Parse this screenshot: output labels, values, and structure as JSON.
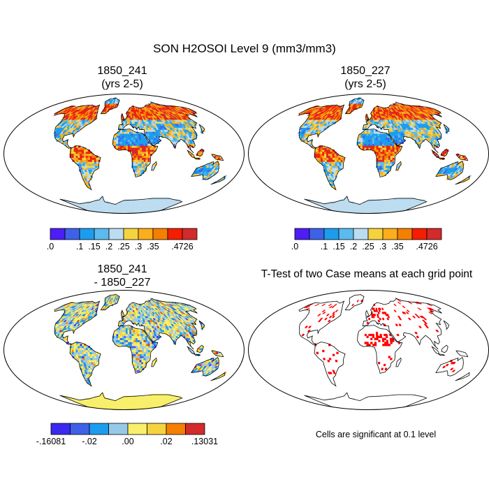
{
  "figure": {
    "title": "SON H2OSOI Level 9 (mm3/mm3)"
  },
  "panels": [
    {
      "id": "p1",
      "title_lines": [
        "1850_241",
        "(yrs 2-5)"
      ],
      "type": "map",
      "palette": [
        "#4d1df5",
        "#3d62e8",
        "#1d9ced",
        "#5cbaee",
        "#bcdcf0",
        "#f5d33f",
        "#fbae1b",
        "#f57f00",
        "#f51e00",
        "#d32a2b"
      ],
      "colorbar": {
        "colors": [
          "#4d1df5",
          "#3d62e8",
          "#1d9ced",
          "#5cbaee",
          "#bcdcf0",
          "#f5d33f",
          "#fbae1b",
          "#f57f00",
          "#f51e00",
          "#d32a2b"
        ],
        "tick_labels": [
          ".0",
          ".1",
          ".15",
          ".2",
          ".25",
          ".3",
          ".35",
          ".4726"
        ],
        "tick_boundaries": [
          0,
          2,
          3,
          4,
          5,
          6,
          7,
          9
        ]
      }
    },
    {
      "id": "p2",
      "title_lines": [
        "1850_227",
        "(yrs 2-5)"
      ],
      "type": "map",
      "palette": [
        "#4d1df5",
        "#3d62e8",
        "#1d9ced",
        "#5cbaee",
        "#bcdcf0",
        "#f5d33f",
        "#fbae1b",
        "#f57f00",
        "#f51e00",
        "#d32a2b"
      ],
      "colorbar": {
        "colors": [
          "#4d1df5",
          "#3d62e8",
          "#1d9ced",
          "#5cbaee",
          "#bcdcf0",
          "#f5d33f",
          "#fbae1b",
          "#f57f00",
          "#f51e00",
          "#d32a2b"
        ],
        "tick_labels": [
          ".0",
          ".1",
          ".15",
          ".2",
          ".25",
          ".3",
          ".35",
          ".4726"
        ],
        "tick_boundaries": [
          0,
          2,
          3,
          4,
          5,
          6,
          7,
          9
        ]
      }
    },
    {
      "id": "p3",
      "title_lines": [
        "1850_241",
        "- 1850_227"
      ],
      "type": "difference-map",
      "palette": [
        "#3a2af0",
        "#3d62e8",
        "#1d9ced",
        "#96c8e8",
        "#f8ef6a",
        "#f5d33f",
        "#f57f00",
        "#d32a2b"
      ],
      "colorbar": {
        "colors": [
          "#3a2af0",
          "#3d62e8",
          "#1d9ced",
          "#96c8e8",
          "#f8ef6a",
          "#f5d33f",
          "#f57f00",
          "#d32a2b"
        ],
        "tick_labels": [
          "-.16081",
          "-.02",
          ".00",
          ".02",
          ".13031"
        ],
        "tick_boundaries": [
          0,
          2,
          4,
          6,
          8
        ]
      }
    },
    {
      "id": "p4",
      "title_lines": [
        "T-Test of two Case means at each grid point"
      ],
      "type": "significance-map",
      "palette": [
        "#ff0000"
      ],
      "note": "Cells are significant at 0.1 level"
    }
  ]
}
